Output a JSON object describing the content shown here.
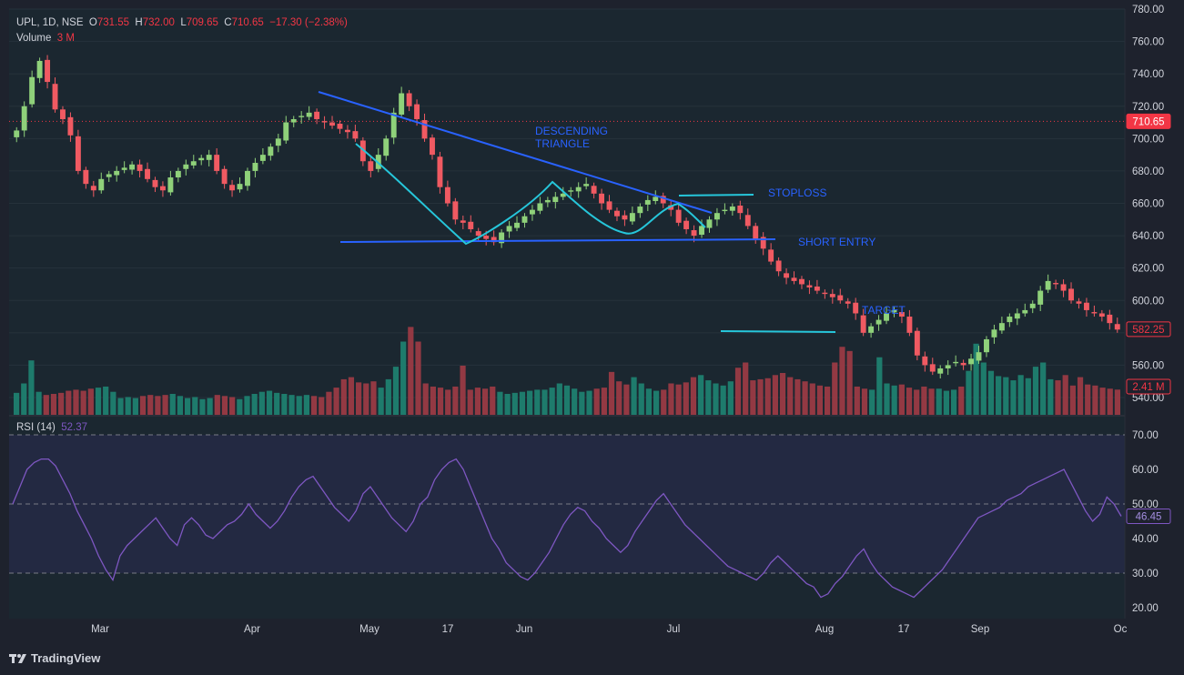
{
  "header": {
    "symbol": "UPL, 1D, NSE",
    "o_label": "O",
    "o_value": "731.55",
    "h_label": "H",
    "h_value": "732.00",
    "l_label": "L",
    "l_value": "709.65",
    "c_label": "C",
    "c_value": "710.65",
    "change": "−17.30 (−2.38%)",
    "volume_label": "Volume",
    "volume_value": "3 M"
  },
  "rsi_header": {
    "label": "RSI (14)",
    "value": "52.37"
  },
  "brand": "TradingView",
  "annotations": {
    "descending_line1": "DESCENDING",
    "descending_line2": "TRIANGLE",
    "stoploss": "STOPLOSS",
    "short_entry": "SHORT ENTRY",
    "target": "TARGET"
  },
  "price_badges": {
    "last_close": "710.65",
    "current": "582.25",
    "volume": "2.41 M",
    "rsi": "46.45"
  },
  "colors": {
    "up": "#8fd17a",
    "down": "#f05a62",
    "vol_up": "#1f7f70",
    "vol_down": "#9a3a44",
    "rsi": "#7e57c2",
    "trend": "#2962ff",
    "pattern": "#26c6da"
  },
  "chart_data": [
    {
      "type": "candlestick",
      "title": "UPL, 1D, NSE",
      "ylim": [
        540,
        780
      ],
      "yticks": [
        "540.00",
        "560.00",
        "580.00",
        "600.00",
        "620.00",
        "640.00",
        "660.00",
        "680.00",
        "700.00",
        "720.00",
        "740.00",
        "760.00",
        "780.00"
      ],
      "xticks": [
        "Mar",
        "Apr",
        "May",
        "17",
        "Jun",
        "Jul",
        "Aug",
        "17",
        "Sep",
        "Oc"
      ],
      "price_path": [
        705,
        720,
        738,
        748,
        735,
        718,
        712,
        702,
        680,
        672,
        668,
        675,
        678,
        680,
        682,
        684,
        680,
        675,
        670,
        668,
        676,
        680,
        684,
        686,
        688,
        690,
        680,
        672,
        668,
        672,
        680,
        685,
        690,
        695,
        700,
        710,
        712,
        714,
        716,
        712,
        710,
        708,
        706,
        704,
        700,
        686,
        680,
        690,
        700,
        716,
        728,
        720,
        712,
        700,
        690,
        670,
        660,
        650,
        648,
        644,
        640,
        638,
        636,
        642,
        646,
        648,
        652,
        656,
        660,
        662,
        664,
        666,
        668,
        670,
        672,
        666,
        660,
        656,
        652,
        650,
        654,
        658,
        662,
        664,
        660,
        656,
        648,
        644,
        640,
        646,
        650,
        654,
        656,
        658,
        654,
        646,
        638,
        632,
        624,
        618,
        614,
        612,
        610,
        608,
        606,
        604,
        602,
        600,
        598,
        592,
        580,
        584,
        588,
        592,
        594,
        590,
        580,
        566,
        560,
        556,
        558,
        560,
        562,
        560,
        564,
        568,
        576,
        582,
        586,
        590,
        592,
        594,
        598,
        606,
        612,
        610,
        606,
        600,
        598,
        594,
        592,
        590,
        586,
        582
      ],
      "close": "710.65",
      "last": "582.25",
      "overlay_lines": [
        {
          "name": "descending-resistance",
          "from": [
            "Apr (late)",
            730
          ],
          "to": [
            "Jul",
            652
          ]
        },
        {
          "name": "support",
          "from": [
            "Apr (late)",
            636
          ],
          "to": [
            "Jul (late)",
            637
          ]
        },
        {
          "name": "stoploss",
          "level": 665
        },
        {
          "name": "target",
          "level": 582
        }
      ]
    },
    {
      "type": "bar",
      "title": "Volume",
      "values_m": [
        2.1,
        3.0,
        5.2,
        2.2,
        1.9,
        2.0,
        2.1,
        2.3,
        2.4,
        2.3,
        2.5,
        2.6,
        2.7,
        2.2,
        1.6,
        1.7,
        1.6,
        1.8,
        1.9,
        1.8,
        1.9,
        2.0,
        1.8,
        1.6,
        1.7,
        1.5,
        1.6,
        1.9,
        1.8,
        1.7,
        1.5,
        1.8,
        2.0,
        2.2,
        2.3,
        2.1,
        2.0,
        1.9,
        1.8,
        1.9,
        1.8,
        1.7,
        2.2,
        2.6,
        3.4,
        3.6,
        3.1,
        3.0,
        3.2,
        2.6,
        3.4,
        4.6,
        7.0,
        8.4,
        7.0,
        3.0,
        2.7,
        2.6,
        2.4,
        2.7,
        4.7,
        2.4,
        2.6,
        2.5,
        2.7,
        2.2,
        2.0,
        2.1,
        2.2,
        2.3,
        2.4,
        2.4,
        2.6,
        3.0,
        2.8,
        2.5,
        2.2,
        2.3,
        2.5,
        2.6,
        4.1,
        3.2,
        2.9,
        3.6,
        3.0,
        2.5,
        2.3,
        2.4,
        3.0,
        2.9,
        3.1,
        3.6,
        3.8,
        3.3,
        3.0,
        2.8,
        3.2,
        4.5,
        5.0,
        3.3,
        3.4,
        3.5,
        3.8,
        4.0,
        3.6,
        3.4,
        3.2,
        3.0,
        2.8,
        2.7,
        5.0,
        6.5,
        6.1,
        2.7,
        2.5,
        2.4,
        5.5,
        3.0,
        2.8,
        2.9,
        2.6,
        2.4,
        2.7,
        2.5,
        2.5,
        2.3,
        2.4,
        2.7,
        4.2,
        6.8,
        5.0,
        4.2,
        3.7,
        3.6,
        3.3,
        3.8,
        3.5,
        4.6,
        5.0,
        3.4,
        3.3,
        3.8,
        2.8,
        3.6,
        2.9,
        2.8,
        2.6,
        2.5,
        2.41
      ],
      "last": "2.41 M"
    },
    {
      "type": "line",
      "title": "RSI (14)",
      "ylim": [
        20,
        70
      ],
      "yticks": [
        "20.00",
        "30.00",
        "40.00",
        "50.00",
        "60.00",
        "70.00"
      ],
      "bands": [
        30,
        50,
        70
      ],
      "values": [
        50,
        55,
        60,
        62,
        63,
        63,
        61,
        57,
        53,
        48,
        44,
        40,
        35,
        31,
        28,
        35,
        38,
        40,
        42,
        44,
        46,
        43,
        40,
        38,
        44,
        46,
        44,
        41,
        40,
        42,
        44,
        45,
        47,
        50,
        47,
        45,
        43,
        45,
        48,
        52,
        55,
        57,
        58,
        55,
        52,
        49,
        47,
        45,
        48,
        53,
        55,
        52,
        49,
        46,
        44,
        42,
        45,
        50,
        52,
        57,
        60,
        62,
        63,
        60,
        55,
        50,
        45,
        40,
        37,
        33,
        31,
        29,
        28,
        30,
        33,
        36,
        40,
        44,
        47,
        49,
        48,
        45,
        43,
        40,
        38,
        36,
        38,
        42,
        45,
        48,
        51,
        53,
        50,
        47,
        44,
        42,
        40,
        38,
        36,
        34,
        32,
        31,
        30,
        29,
        28,
        30,
        33,
        35,
        33,
        31,
        29,
        27,
        26,
        23,
        24,
        27,
        29,
        32,
        35,
        37,
        33,
        30,
        28,
        26,
        25,
        24,
        23,
        25,
        27,
        29,
        31,
        34,
        37,
        40,
        43,
        46,
        47,
        48,
        49,
        51,
        52,
        53,
        55,
        56,
        57,
        58,
        59,
        60,
        56,
        52,
        48,
        45,
        47,
        52,
        50,
        46.45
      ],
      "last": "46.45"
    }
  ]
}
